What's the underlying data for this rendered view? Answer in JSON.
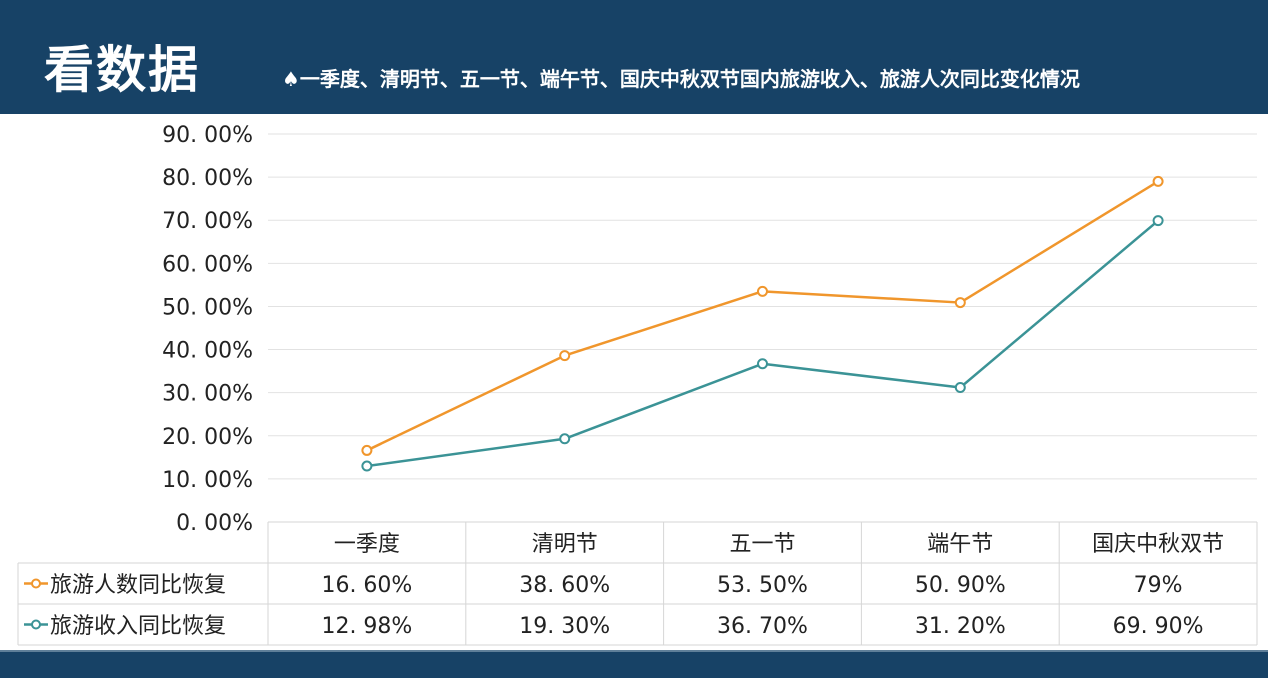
{
  "header": {
    "title": "看数据",
    "subtitle": "♠一季度、清明节、五一节、端午节、国庆中秋双节国内旅游收入、旅游人次同比变化情况"
  },
  "chart_data": {
    "type": "line",
    "categories": [
      "一季度",
      "清明节",
      "五一节",
      "端午节",
      "国庆中秋双节"
    ],
    "ylim": [
      0,
      90
    ],
    "yticks": [
      0,
      10,
      20,
      30,
      40,
      50,
      60,
      70,
      80,
      90
    ],
    "ytick_labels": [
      "0. 00%",
      "10. 00%",
      "20. 00%",
      "30. 00%",
      "40. 00%",
      "50. 00%",
      "60. 00%",
      "70. 00%",
      "80. 00%",
      "90. 00%"
    ],
    "grid": true,
    "legend": "data-table",
    "series": [
      {
        "name": "旅游人数同比恢复",
        "values": [
          16.6,
          38.6,
          53.5,
          50.9,
          79
        ],
        "labels": [
          "16. 60%",
          "38. 60%",
          "53. 50%",
          "50. 90%",
          "79%"
        ],
        "color": "#f0962c"
      },
      {
        "name": "旅游收入同比恢复",
        "values": [
          12.98,
          19.3,
          36.7,
          31.2,
          69.9
        ],
        "labels": [
          "12. 98%",
          "19. 30%",
          "36. 70%",
          "31. 20%",
          "69. 90%"
        ],
        "color": "#3b9396"
      }
    ]
  }
}
